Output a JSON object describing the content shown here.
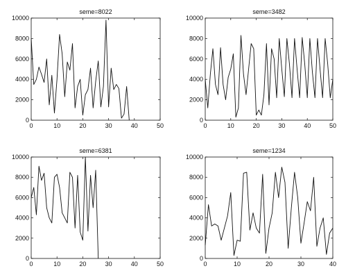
{
  "chart_data": [
    {
      "type": "line",
      "title": "seme=8022",
      "xlim": [
        0,
        50
      ],
      "ylim": [
        0,
        10000
      ],
      "xticks": [
        0,
        10,
        20,
        30,
        40,
        50
      ],
      "yticks": [
        0,
        2000,
        4000,
        6000,
        8000,
        10000
      ],
      "grid": false,
      "series": [
        {
          "x": [
            0,
            1,
            2,
            3,
            4,
            5,
            6,
            7,
            8,
            9,
            10,
            11,
            12,
            13,
            14,
            15,
            16,
            17,
            18,
            19,
            20,
            21,
            22,
            23,
            24,
            25,
            26,
            27,
            28,
            29,
            30,
            31,
            32,
            33,
            34,
            35,
            36,
            37,
            38
          ],
          "y": [
            8000,
            3500,
            4000,
            5200,
            4500,
            3700,
            6000,
            1500,
            4400,
            700,
            4000,
            8400,
            6500,
            2300,
            5700,
            4900,
            7500,
            1200,
            3300,
            4000,
            500,
            2500,
            3000,
            5100,
            1200,
            3800,
            5800,
            1300,
            3300,
            9800,
            1300,
            5100,
            3000,
            3500,
            3100,
            200,
            600,
            3300,
            0
          ]
        }
      ]
    },
    {
      "type": "line",
      "title": "seme=3482",
      "xlim": [
        0,
        50
      ],
      "ylim": [
        0,
        10000
      ],
      "xticks": [
        0,
        10,
        20,
        30,
        40,
        50
      ],
      "yticks": [
        0,
        2000,
        4000,
        6000,
        8000,
        10000
      ],
      "grid": false,
      "series": [
        {
          "x": [
            0,
            1,
            2,
            3,
            4,
            5,
            6,
            7,
            8,
            9,
            10,
            11,
            12,
            13,
            14,
            15,
            16,
            17,
            18,
            19,
            20,
            21,
            22,
            23,
            24,
            25,
            26,
            27,
            28,
            29,
            30,
            31,
            32,
            33,
            34,
            35,
            36,
            37,
            38,
            39,
            40,
            41,
            42,
            43,
            44,
            45,
            46,
            47,
            48,
            49,
            50
          ],
          "y": [
            4000,
            1200,
            4500,
            7000,
            3500,
            2500,
            7100,
            3500,
            2000,
            4200,
            5000,
            6500,
            300,
            1200,
            8300,
            4500,
            2500,
            5000,
            7500,
            7000,
            500,
            1000,
            500,
            2500,
            7500,
            1500,
            7000,
            6000,
            2200,
            8000,
            5000,
            2300,
            8000,
            5500,
            2200,
            8000,
            5000,
            2200,
            8100,
            5500,
            2200,
            8000,
            4700,
            2200,
            8000,
            5000,
            2200,
            8000,
            5500,
            2200,
            4000
          ]
        }
      ]
    },
    {
      "type": "line",
      "title": "seme=6381",
      "xlim": [
        0,
        50
      ],
      "ylim": [
        0,
        10000
      ],
      "xticks": [
        0,
        10,
        20,
        30,
        40,
        50
      ],
      "yticks": [
        0,
        2000,
        4000,
        6000,
        8000,
        10000
      ],
      "grid": false,
      "series": [
        {
          "x": [
            0,
            1,
            2,
            3,
            4,
            5,
            6,
            7,
            8,
            9,
            10,
            11,
            12,
            13,
            14,
            15,
            16,
            17,
            18,
            19,
            20,
            21,
            22,
            23,
            24,
            25,
            26
          ],
          "y": [
            6000,
            7000,
            4300,
            9100,
            7700,
            8400,
            5000,
            4000,
            3500,
            8000,
            8300,
            7000,
            4500,
            4000,
            3500,
            8500,
            8000,
            3000,
            8200,
            2600,
            1800,
            10000,
            2700,
            8200,
            5000,
            8700,
            0
          ]
        }
      ]
    },
    {
      "type": "line",
      "title": "seme=1234",
      "xlim": [
        0,
        40
      ],
      "ylim": [
        0,
        10000
      ],
      "xticks": [
        0,
        10,
        20,
        30,
        40
      ],
      "yticks": [
        0,
        2000,
        4000,
        6000,
        8000,
        10000
      ],
      "grid": false,
      "series": [
        {
          "x": [
            0,
            1,
            2,
            3,
            4,
            5,
            6,
            7,
            8,
            9,
            10,
            11,
            12,
            13,
            14,
            15,
            16,
            17,
            18,
            19,
            20,
            21,
            22,
            23,
            24,
            25,
            26,
            27,
            28,
            29,
            30,
            31,
            32,
            33,
            34,
            35,
            36,
            37,
            38,
            39,
            40
          ],
          "y": [
            1300,
            5300,
            3200,
            3400,
            3200,
            1800,
            3000,
            4200,
            6500,
            300,
            1800,
            1700,
            8400,
            8500,
            2800,
            4500,
            3000,
            2500,
            8300,
            500,
            3000,
            4500,
            8500,
            6000,
            9000,
            7500,
            1000,
            5000,
            8500,
            6000,
            1500,
            3500,
            5600,
            4700,
            8000,
            1200,
            3000,
            4000,
            400,
            2500,
            3000
          ]
        }
      ]
    }
  ]
}
